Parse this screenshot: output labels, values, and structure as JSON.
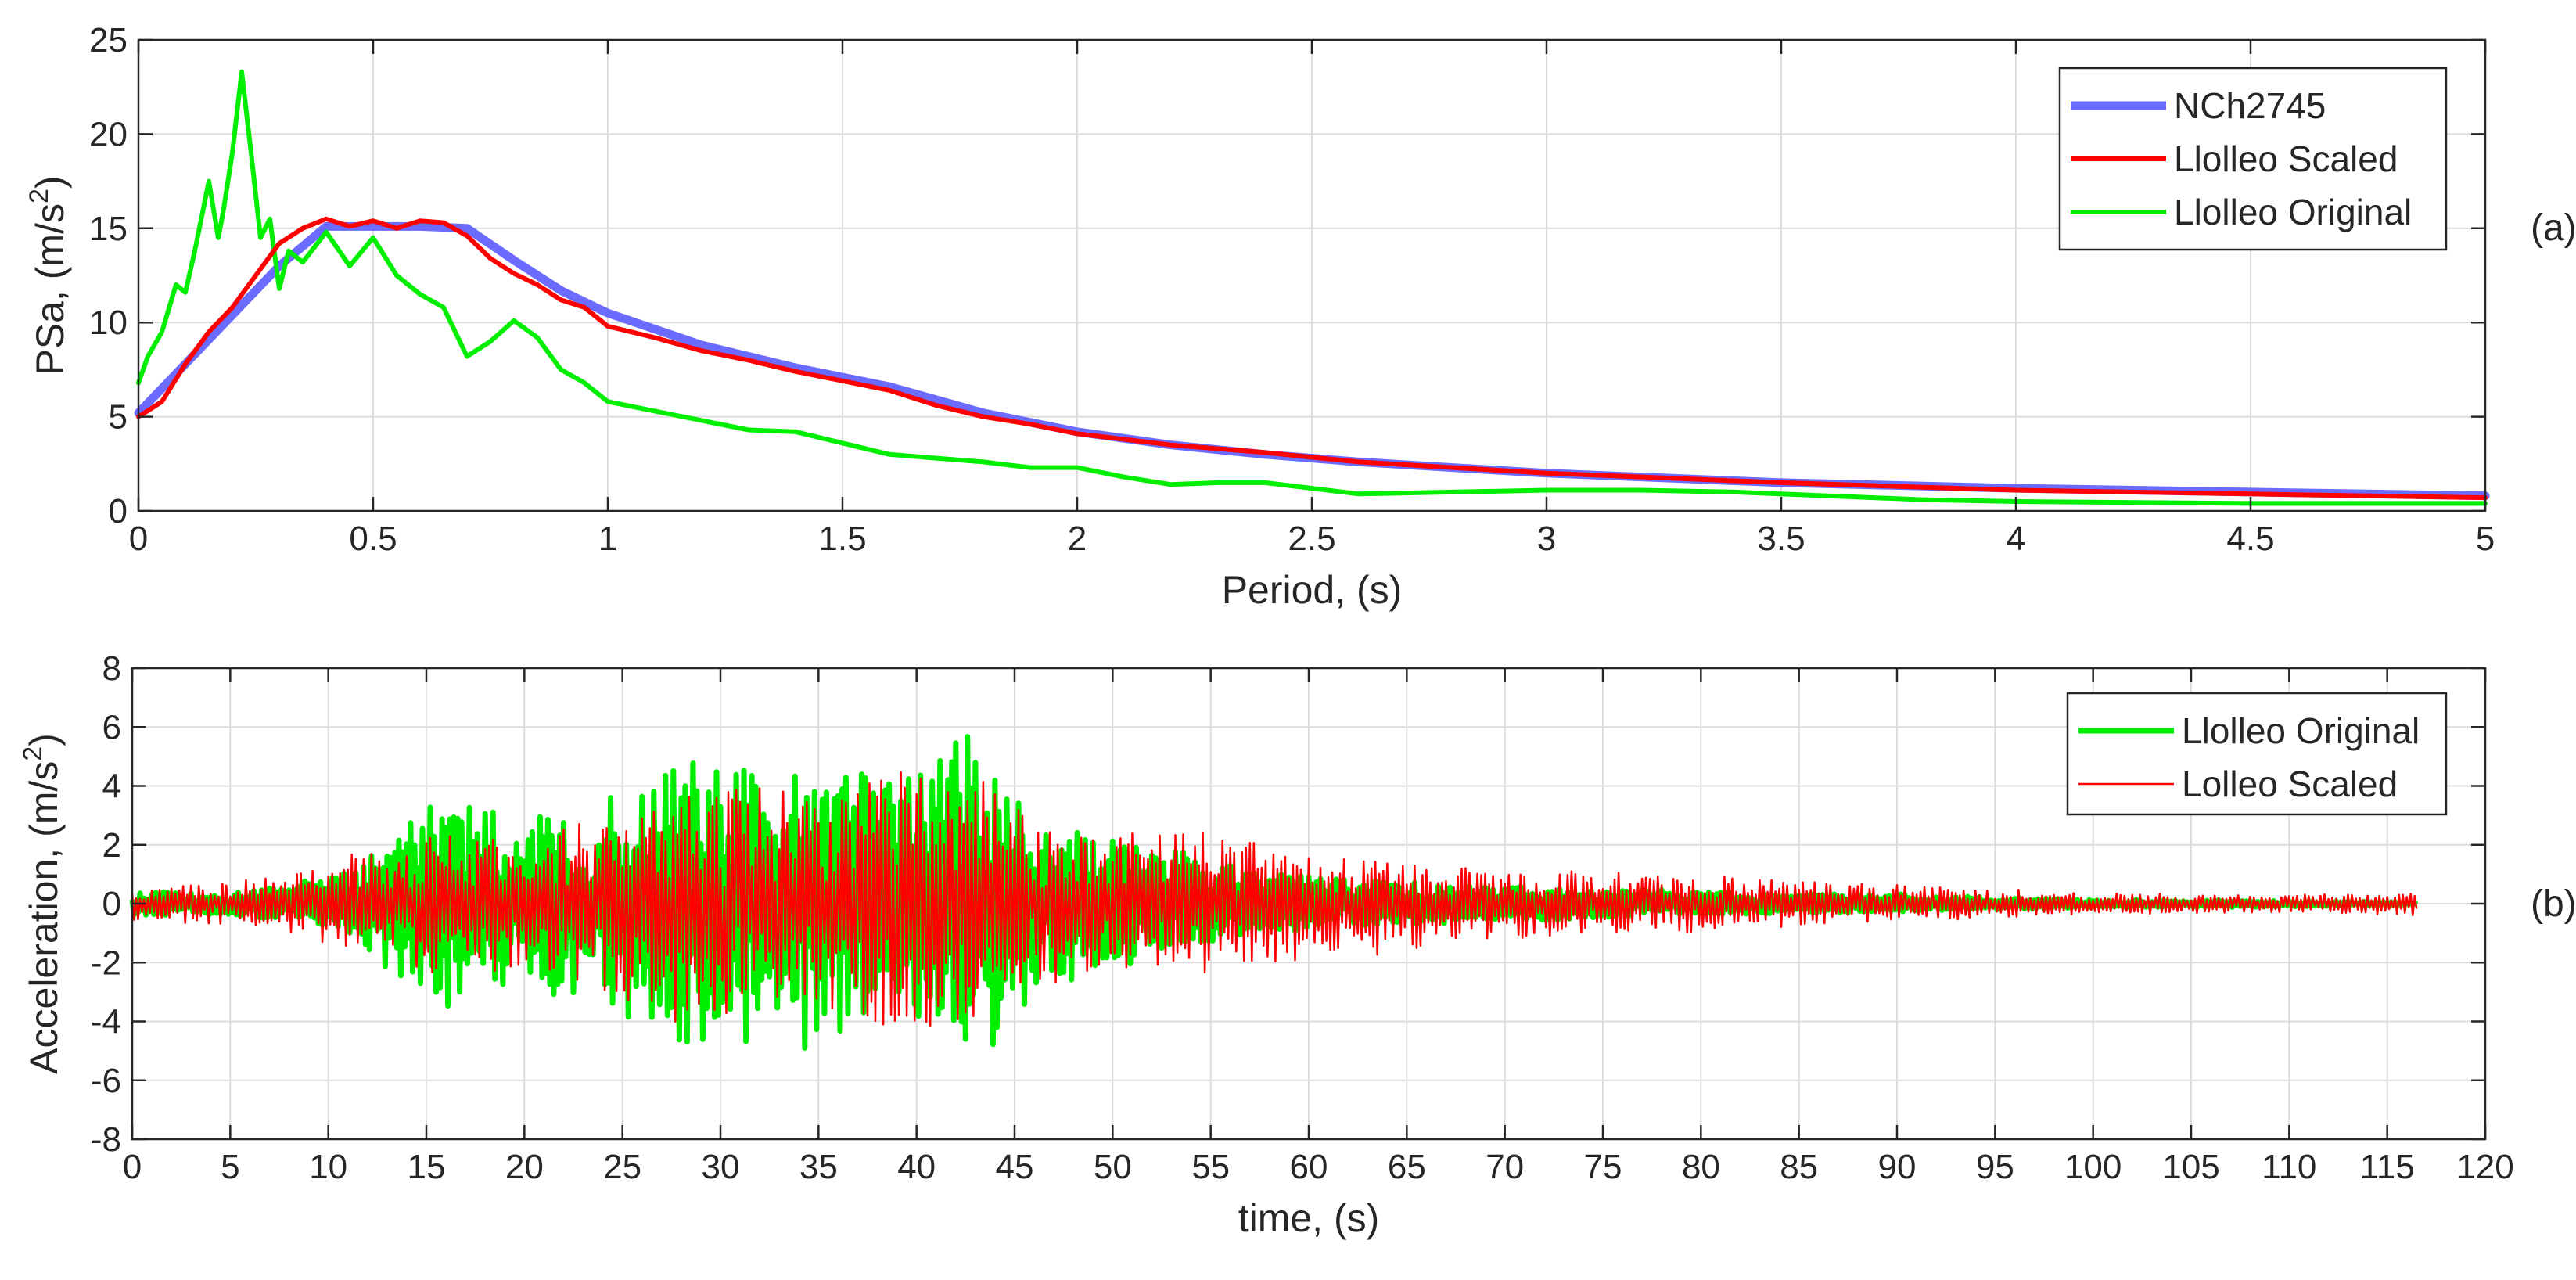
{
  "chart_data": [
    {
      "type": "line",
      "panel_label": "(a)",
      "xlabel": "Period, (s)",
      "ylabel": "PSa, (m/s",
      "ylabel_sup": "2",
      "ylabel_close": ")",
      "xlim": [
        0,
        5
      ],
      "ylim": [
        0,
        25
      ],
      "xticks": [
        0,
        0.5,
        1,
        1.5,
        2,
        2.5,
        3,
        3.5,
        4,
        4.5,
        5
      ],
      "xtick_labels": [
        "0",
        "0.5",
        "1",
        "1.5",
        "2",
        "2.5",
        "3",
        "3.5",
        "4",
        "4.5",
        "5"
      ],
      "yticks": [
        0,
        5,
        10,
        15,
        20,
        25
      ],
      "ytick_labels": [
        "0",
        "5",
        "10",
        "15",
        "20",
        "25"
      ],
      "grid": true,
      "legend_position": "top-right",
      "series": [
        {
          "name": "NCh2745",
          "color": "#6b6bff",
          "x": [
            0,
            0.1,
            0.2,
            0.3,
            0.4,
            0.5,
            0.6,
            0.7,
            0.8,
            0.9,
            1.0,
            1.2,
            1.4,
            1.6,
            1.8,
            2.0,
            2.2,
            2.4,
            2.6,
            2.8,
            3.0,
            3.5,
            4.0,
            4.5,
            5.0
          ],
          "y": [
            5.2,
            7.8,
            10.4,
            13.0,
            15.1,
            15.1,
            15.1,
            15.0,
            13.3,
            11.7,
            10.5,
            8.8,
            7.6,
            6.6,
            5.2,
            4.2,
            3.5,
            3.0,
            2.6,
            2.3,
            2.0,
            1.5,
            1.2,
            1.0,
            0.8
          ]
        },
        {
          "name": "Llolleo Scaled",
          "color": "#ff0000",
          "x": [
            0,
            0.05,
            0.1,
            0.15,
            0.2,
            0.25,
            0.3,
            0.35,
            0.4,
            0.45,
            0.5,
            0.55,
            0.6,
            0.65,
            0.7,
            0.75,
            0.8,
            0.85,
            0.9,
            0.95,
            1.0,
            1.1,
            1.2,
            1.3,
            1.4,
            1.5,
            1.6,
            1.7,
            1.8,
            1.9,
            2.0,
            2.2,
            2.4,
            2.6,
            2.8,
            3.0,
            3.5,
            4.0,
            4.5,
            5.0
          ],
          "y": [
            5.0,
            5.8,
            7.8,
            9.5,
            10.8,
            12.5,
            14.2,
            15.0,
            15.5,
            15.1,
            15.4,
            15.0,
            15.4,
            15.3,
            14.6,
            13.4,
            12.6,
            12.0,
            11.2,
            10.8,
            9.8,
            9.2,
            8.5,
            8.0,
            7.4,
            6.9,
            6.4,
            5.6,
            5.0,
            4.6,
            4.1,
            3.5,
            3.1,
            2.6,
            2.3,
            2.0,
            1.5,
            1.1,
            0.9,
            0.7
          ]
        },
        {
          "name": "Llolleo Original",
          "color": "#00ee00",
          "x": [
            0,
            0.02,
            0.05,
            0.08,
            0.1,
            0.12,
            0.15,
            0.17,
            0.18,
            0.2,
            0.22,
            0.24,
            0.26,
            0.28,
            0.3,
            0.32,
            0.35,
            0.4,
            0.45,
            0.5,
            0.55,
            0.6,
            0.65,
            0.7,
            0.75,
            0.8,
            0.85,
            0.9,
            0.95,
            1.0,
            1.1,
            1.2,
            1.3,
            1.4,
            1.5,
            1.6,
            1.7,
            1.8,
            1.9,
            2.0,
            2.1,
            2.2,
            2.3,
            2.4,
            2.5,
            2.6,
            2.8,
            3.0,
            3.2,
            3.4,
            3.6,
            3.8,
            4.0,
            4.5,
            5.0
          ],
          "y": [
            6.8,
            8.2,
            9.5,
            12.0,
            11.6,
            13.8,
            17.5,
            14.5,
            15.8,
            19.0,
            23.3,
            19.0,
            14.5,
            15.5,
            11.8,
            13.8,
            13.2,
            14.8,
            13.0,
            14.5,
            12.5,
            11.5,
            10.8,
            8.2,
            9.0,
            10.1,
            9.2,
            7.5,
            6.8,
            5.8,
            5.3,
            4.8,
            4.3,
            4.2,
            3.6,
            3.0,
            2.8,
            2.6,
            2.3,
            2.3,
            1.8,
            1.4,
            1.5,
            1.5,
            1.2,
            0.9,
            1.0,
            1.1,
            1.1,
            1.0,
            0.8,
            0.6,
            0.5,
            0.4,
            0.4
          ]
        }
      ]
    },
    {
      "type": "line",
      "panel_label": "(b)",
      "xlabel": "time, (s)",
      "ylabel": "Acceleration, (m/s",
      "ylabel_sup": "2",
      "ylabel_close": ")",
      "xlim": [
        0,
        120
      ],
      "ylim": [
        -8,
        8
      ],
      "xticks": [
        0,
        5,
        10,
        15,
        20,
        25,
        30,
        35,
        40,
        45,
        50,
        55,
        60,
        65,
        70,
        75,
        80,
        85,
        90,
        95,
        100,
        105,
        110,
        115,
        120
      ],
      "xtick_labels": [
        "0",
        "5",
        "10",
        "15",
        "20",
        "25",
        "30",
        "35",
        "40",
        "45",
        "50",
        "55",
        "60",
        "65",
        "70",
        "75",
        "80",
        "85",
        "90",
        "95",
        "100",
        "105",
        "110",
        "115",
        "120"
      ],
      "yticks": [
        -8,
        -6,
        -4,
        -2,
        0,
        2,
        4,
        6,
        8
      ],
      "ytick_labels": [
        "-8",
        "-6",
        "-4",
        "-2",
        "0",
        "2",
        "4",
        "6",
        "8"
      ],
      "grid": true,
      "legend_position": "top-right",
      "series": [
        {
          "name": "Llolleo Original",
          "color": "#00ee00",
          "duration": 116.5,
          "envelope_t": [
            0,
            5,
            10,
            13,
            15,
            20,
            25,
            28,
            30,
            33,
            35,
            38,
            40,
            42,
            44,
            46,
            50,
            55,
            60,
            70,
            80,
            90,
            100,
            110,
            116.5
          ],
          "envelope_amp": [
            0.35,
            0.4,
            0.8,
            2.3,
            3.6,
            2.8,
            3.6,
            4.8,
            4.3,
            5.0,
            4.6,
            4.5,
            4.2,
            6.2,
            5.2,
            3.0,
            2.2,
            1.4,
            0.9,
            0.6,
            0.4,
            0.3,
            0.15,
            0.1,
            0.05
          ]
        },
        {
          "name": "Lolleo Scaled",
          "color": "#ff0000",
          "duration": 116.5,
          "envelope_t": [
            0,
            5,
            10,
            15,
            20,
            25,
            28,
            30,
            33,
            35,
            38,
            40,
            42,
            44,
            46,
            50,
            55,
            60,
            65,
            70,
            80,
            90,
            100,
            110,
            116.5
          ],
          "envelope_amp": [
            0.6,
            0.8,
            1.3,
            2.6,
            2.2,
            3.0,
            4.0,
            3.6,
            3.8,
            3.6,
            4.2,
            4.8,
            4.2,
            4.0,
            2.8,
            2.4,
            2.3,
            1.9,
            1.5,
            1.2,
            0.9,
            0.6,
            0.35,
            0.3,
            0.4
          ]
        }
      ]
    }
  ]
}
